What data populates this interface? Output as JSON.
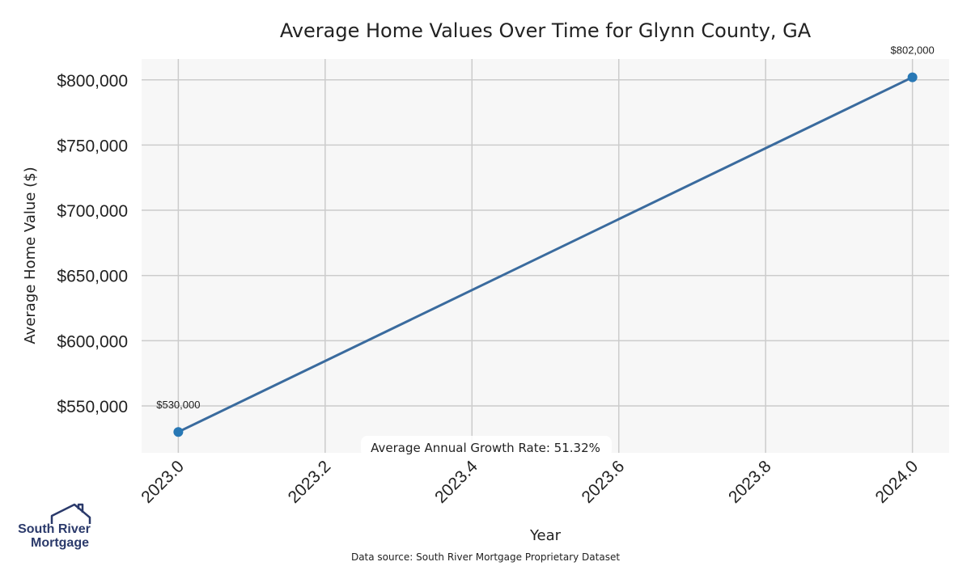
{
  "chart_data": {
    "type": "line",
    "title": "Average Home Values Over Time for Glynn County, GA",
    "xlabel": "Year",
    "ylabel": "Average Home Value ($)",
    "x": [
      2023.0,
      2024.0
    ],
    "series": [
      {
        "values": [
          530000,
          802000
        ],
        "labels": [
          "$530,000",
          "$802,000"
        ]
      }
    ],
    "xlim": [
      2022.95,
      2024.05
    ],
    "ylim": [
      514000,
      816000
    ],
    "x_ticks": [
      2023.0,
      2023.2,
      2023.4,
      2023.6,
      2023.8,
      2024.0
    ],
    "x_tick_labels": [
      "2023.0",
      "2023.2",
      "2023.4",
      "2023.6",
      "2023.8",
      "2024.0"
    ],
    "y_ticks": [
      550000,
      600000,
      650000,
      700000,
      750000,
      800000
    ],
    "y_tick_labels": [
      "$550,000",
      "$600,000",
      "$650,000",
      "$700,000",
      "$750,000",
      "$800,000"
    ],
    "grid": true,
    "annotation": "Average Annual Growth Rate: 51.32%",
    "colors": {
      "line": "#3a6b9e",
      "marker": "#2878b5",
      "plot_bg": "#f7f7f7",
      "grid": "#cccccc"
    }
  },
  "footer": {
    "source": "Data source: South River Mortgage Proprietary Dataset"
  },
  "logo": {
    "line1": "South River",
    "line2": "Mortgage",
    "icon": "house-roof-icon"
  }
}
